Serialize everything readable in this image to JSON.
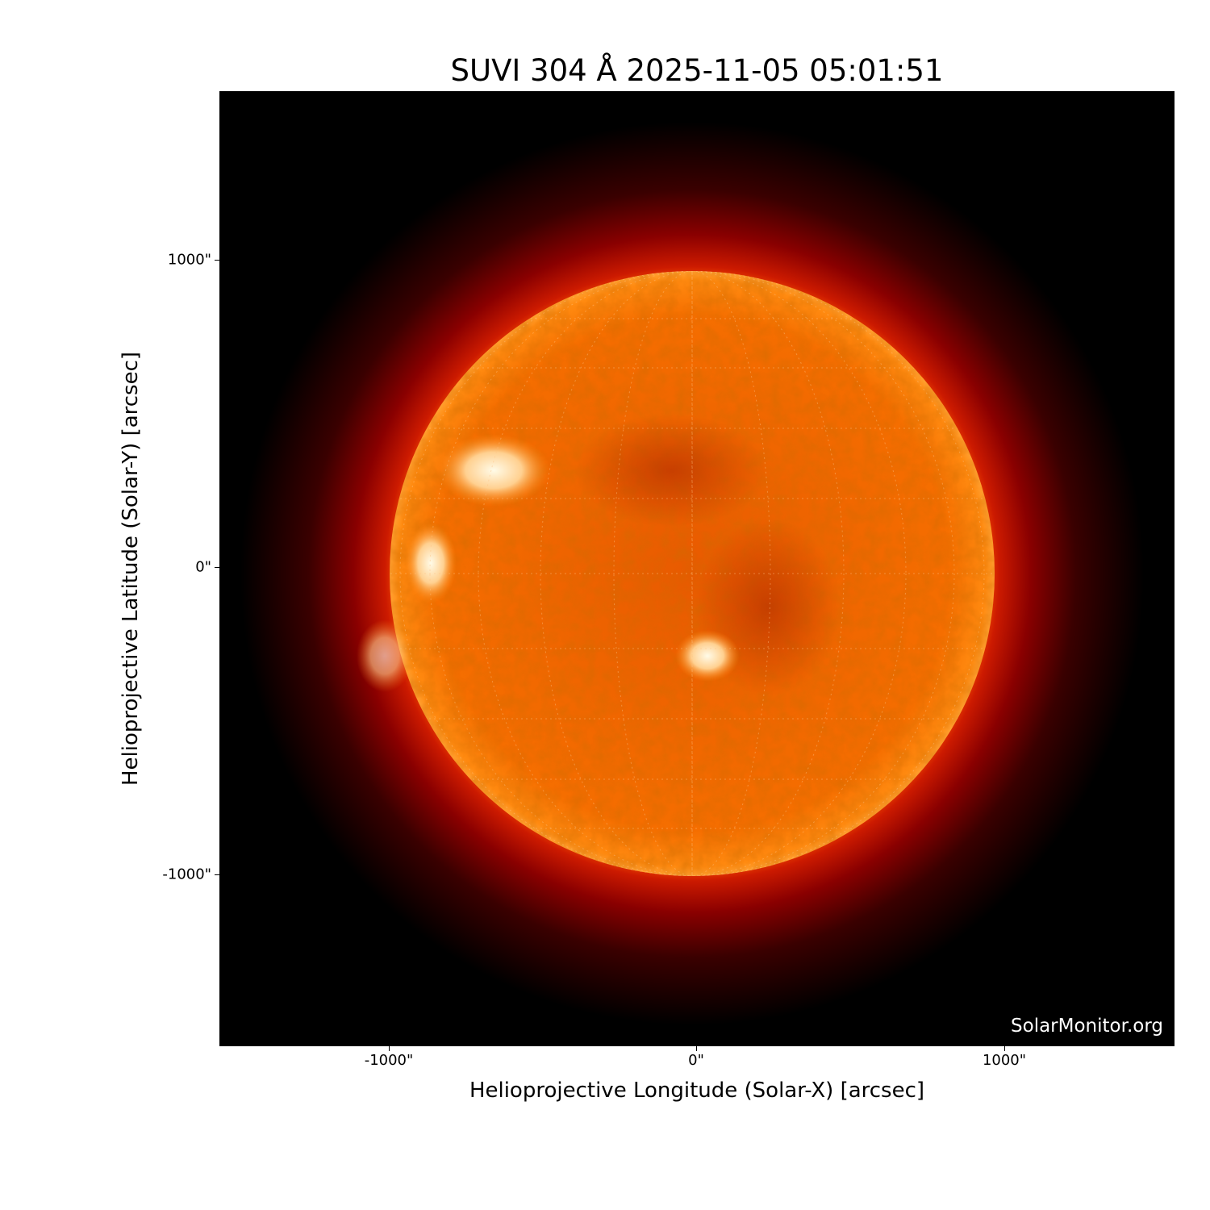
{
  "title": "SUVI 304 Å 2025-11-05 05:01:51",
  "watermark": "SolarMonitor.org",
  "x_axis": {
    "label": "Helioprojective Longitude (Solar-X) [arcsec]",
    "ticks": [
      "-1000\"",
      "0\"",
      "1000\""
    ]
  },
  "y_axis": {
    "label": "Helioprojective Latitude (Solar-Y) [arcsec]",
    "ticks": [
      "1000\"",
      "0\"",
      "-1000\""
    ]
  },
  "colors": {
    "background": "#000000",
    "disk": "#ff7a00",
    "limb": "#cc2200",
    "active_region": "#fff2d0"
  }
}
